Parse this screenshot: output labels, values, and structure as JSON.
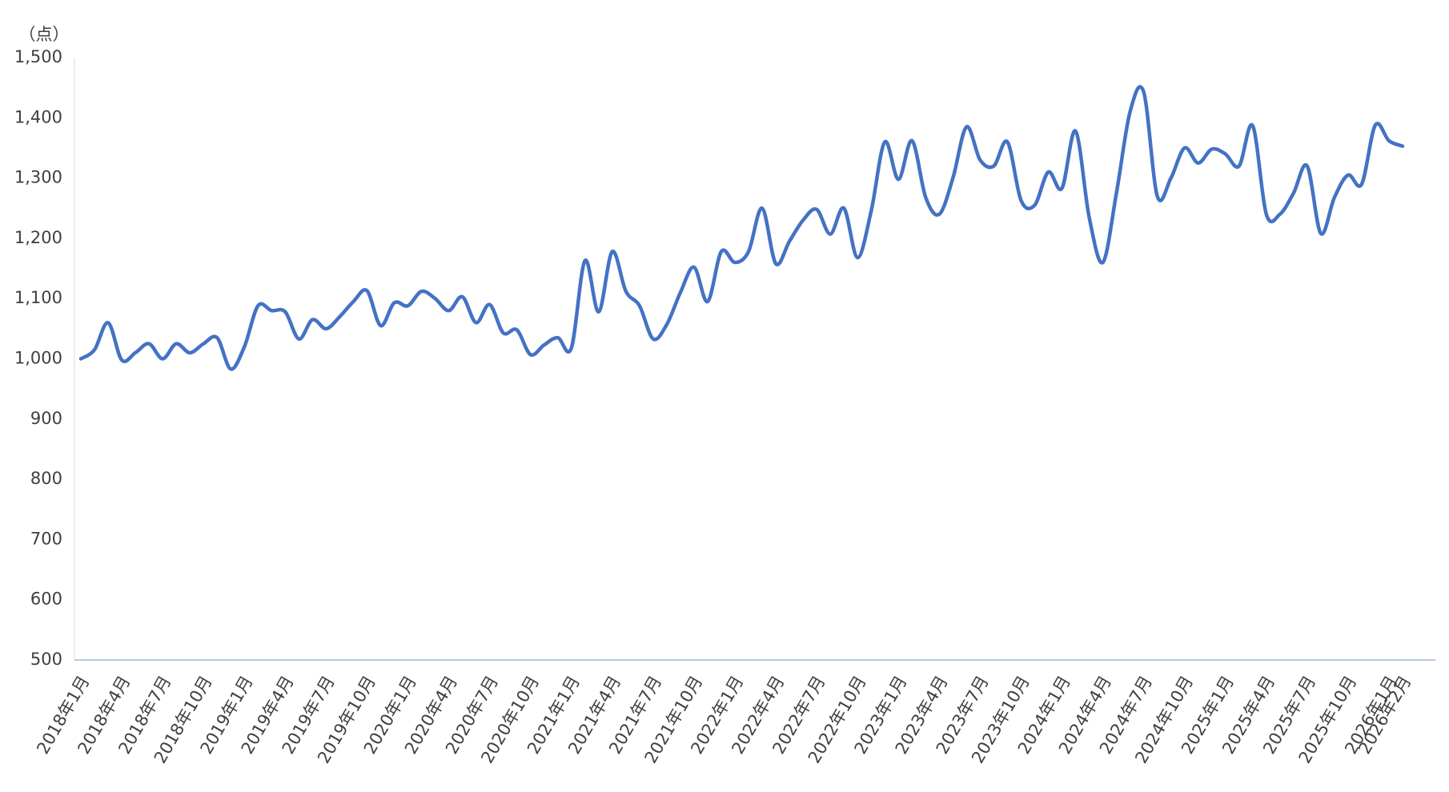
{
  "chart_data": {
    "type": "line",
    "unit_label": "（点）",
    "categories": [
      "2018年1月",
      null,
      null,
      "2018年4月",
      null,
      null,
      "2018年7月",
      null,
      null,
      "2018年10月",
      null,
      null,
      "2019年1月",
      null,
      null,
      "2019年4月",
      null,
      null,
      "2019年7月",
      null,
      null,
      "2019年10月",
      null,
      null,
      "2020年1月",
      null,
      null,
      "2020年4月",
      null,
      null,
      "2020年7月",
      null,
      null,
      "2020年10月",
      null,
      null,
      "2021年1月",
      null,
      null,
      "2021年4月",
      null,
      null,
      "2021年7月",
      null,
      null,
      "2021年10月",
      null,
      null,
      "2022年1月",
      null,
      null,
      "2022年4月",
      null,
      null,
      "2022年7月",
      null,
      null,
      "2022年10月",
      null,
      null,
      "2023年1月",
      null,
      null,
      "2023年4月",
      null,
      null,
      "2023年7月",
      null,
      null,
      "2023年10月",
      null,
      null,
      "2024年1月",
      null,
      null,
      "2024年4月",
      null,
      null,
      "2024年7月",
      null,
      null,
      "2024年10月",
      null,
      null,
      "2025年1月",
      null,
      null,
      "2025年4月",
      null,
      null,
      "2025年7月",
      null,
      null,
      "2025年10月",
      null,
      null,
      "2026年1月",
      "2026年2月"
    ],
    "values": [
      1000,
      1015,
      1060,
      998,
      1010,
      1025,
      1000,
      1025,
      1010,
      1025,
      1035,
      983,
      1020,
      1088,
      1080,
      1078,
      1033,
      1065,
      1050,
      1070,
      1095,
      1113,
      1055,
      1093,
      1088,
      1112,
      1100,
      1080,
      1103,
      1060,
      1090,
      1043,
      1048,
      1007,
      1023,
      1035,
      1018,
      1163,
      1078,
      1178,
      1112,
      1088,
      1033,
      1057,
      1110,
      1152,
      1095,
      1178,
      1160,
      1178,
      1250,
      1158,
      1195,
      1230,
      1248,
      1207,
      1250,
      1168,
      1245,
      1360,
      1298,
      1362,
      1268,
      1240,
      1300,
      1385,
      1330,
      1320,
      1360,
      1263,
      1255,
      1310,
      1283,
      1378,
      1235,
      1160,
      1275,
      1410,
      1443,
      1270,
      1300,
      1350,
      1325,
      1348,
      1340,
      1320,
      1387,
      1240,
      1240,
      1275,
      1320,
      1208,
      1268,
      1305,
      1290,
      1388,
      1362,
      1353
    ],
    "color": "#4472c4",
    "ylim": [
      500,
      1500
    ],
    "yticks": [
      500,
      600,
      700,
      800,
      900,
      {
        "value": 1000,
        "label": "1,000"
      },
      {
        "value": 1100,
        "label": "1,100"
      },
      {
        "value": 1200,
        "label": "1,200"
      },
      {
        "value": 1300,
        "label": "1,300"
      },
      {
        "value": 1400,
        "label": "1,400"
      },
      {
        "value": 1500,
        "label": "1,500"
      }
    ],
    "grid": false
  }
}
